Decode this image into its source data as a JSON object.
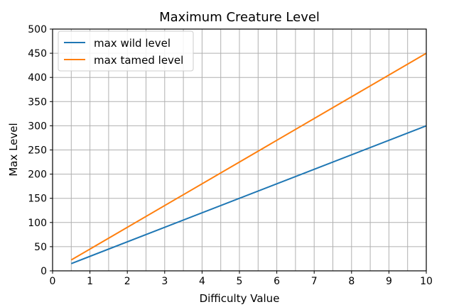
{
  "chart_data": {
    "type": "line",
    "title": "Maximum Creature Level",
    "xlabel": "Difficulty Value",
    "ylabel": "Max Level",
    "xlim": [
      0,
      10
    ],
    "ylim": [
      0,
      500
    ],
    "x_ticks": [
      0,
      1,
      2,
      3,
      4,
      5,
      6,
      7,
      8,
      9,
      10
    ],
    "y_ticks": [
      0,
      50,
      100,
      150,
      200,
      250,
      300,
      350,
      400,
      450,
      500
    ],
    "x_tick_labels": [
      "0",
      "1",
      "2",
      "3",
      "4",
      "5",
      "6",
      "7",
      "8",
      "9",
      "10"
    ],
    "y_tick_labels": [
      "0",
      "50",
      "100",
      "150",
      "200",
      "250",
      "300",
      "350",
      "400",
      "450",
      "500"
    ],
    "x_grid_step": 0.5,
    "grid": true,
    "legend": "top-left",
    "series": [
      {
        "name": "max wild level",
        "color": "#1f77b4",
        "x": [
          0.5,
          10
        ],
        "y": [
          15,
          300
        ]
      },
      {
        "name": "max tamed level",
        "color": "#ff7f0e",
        "x": [
          0.5,
          10
        ],
        "y": [
          22.5,
          450
        ]
      }
    ]
  }
}
